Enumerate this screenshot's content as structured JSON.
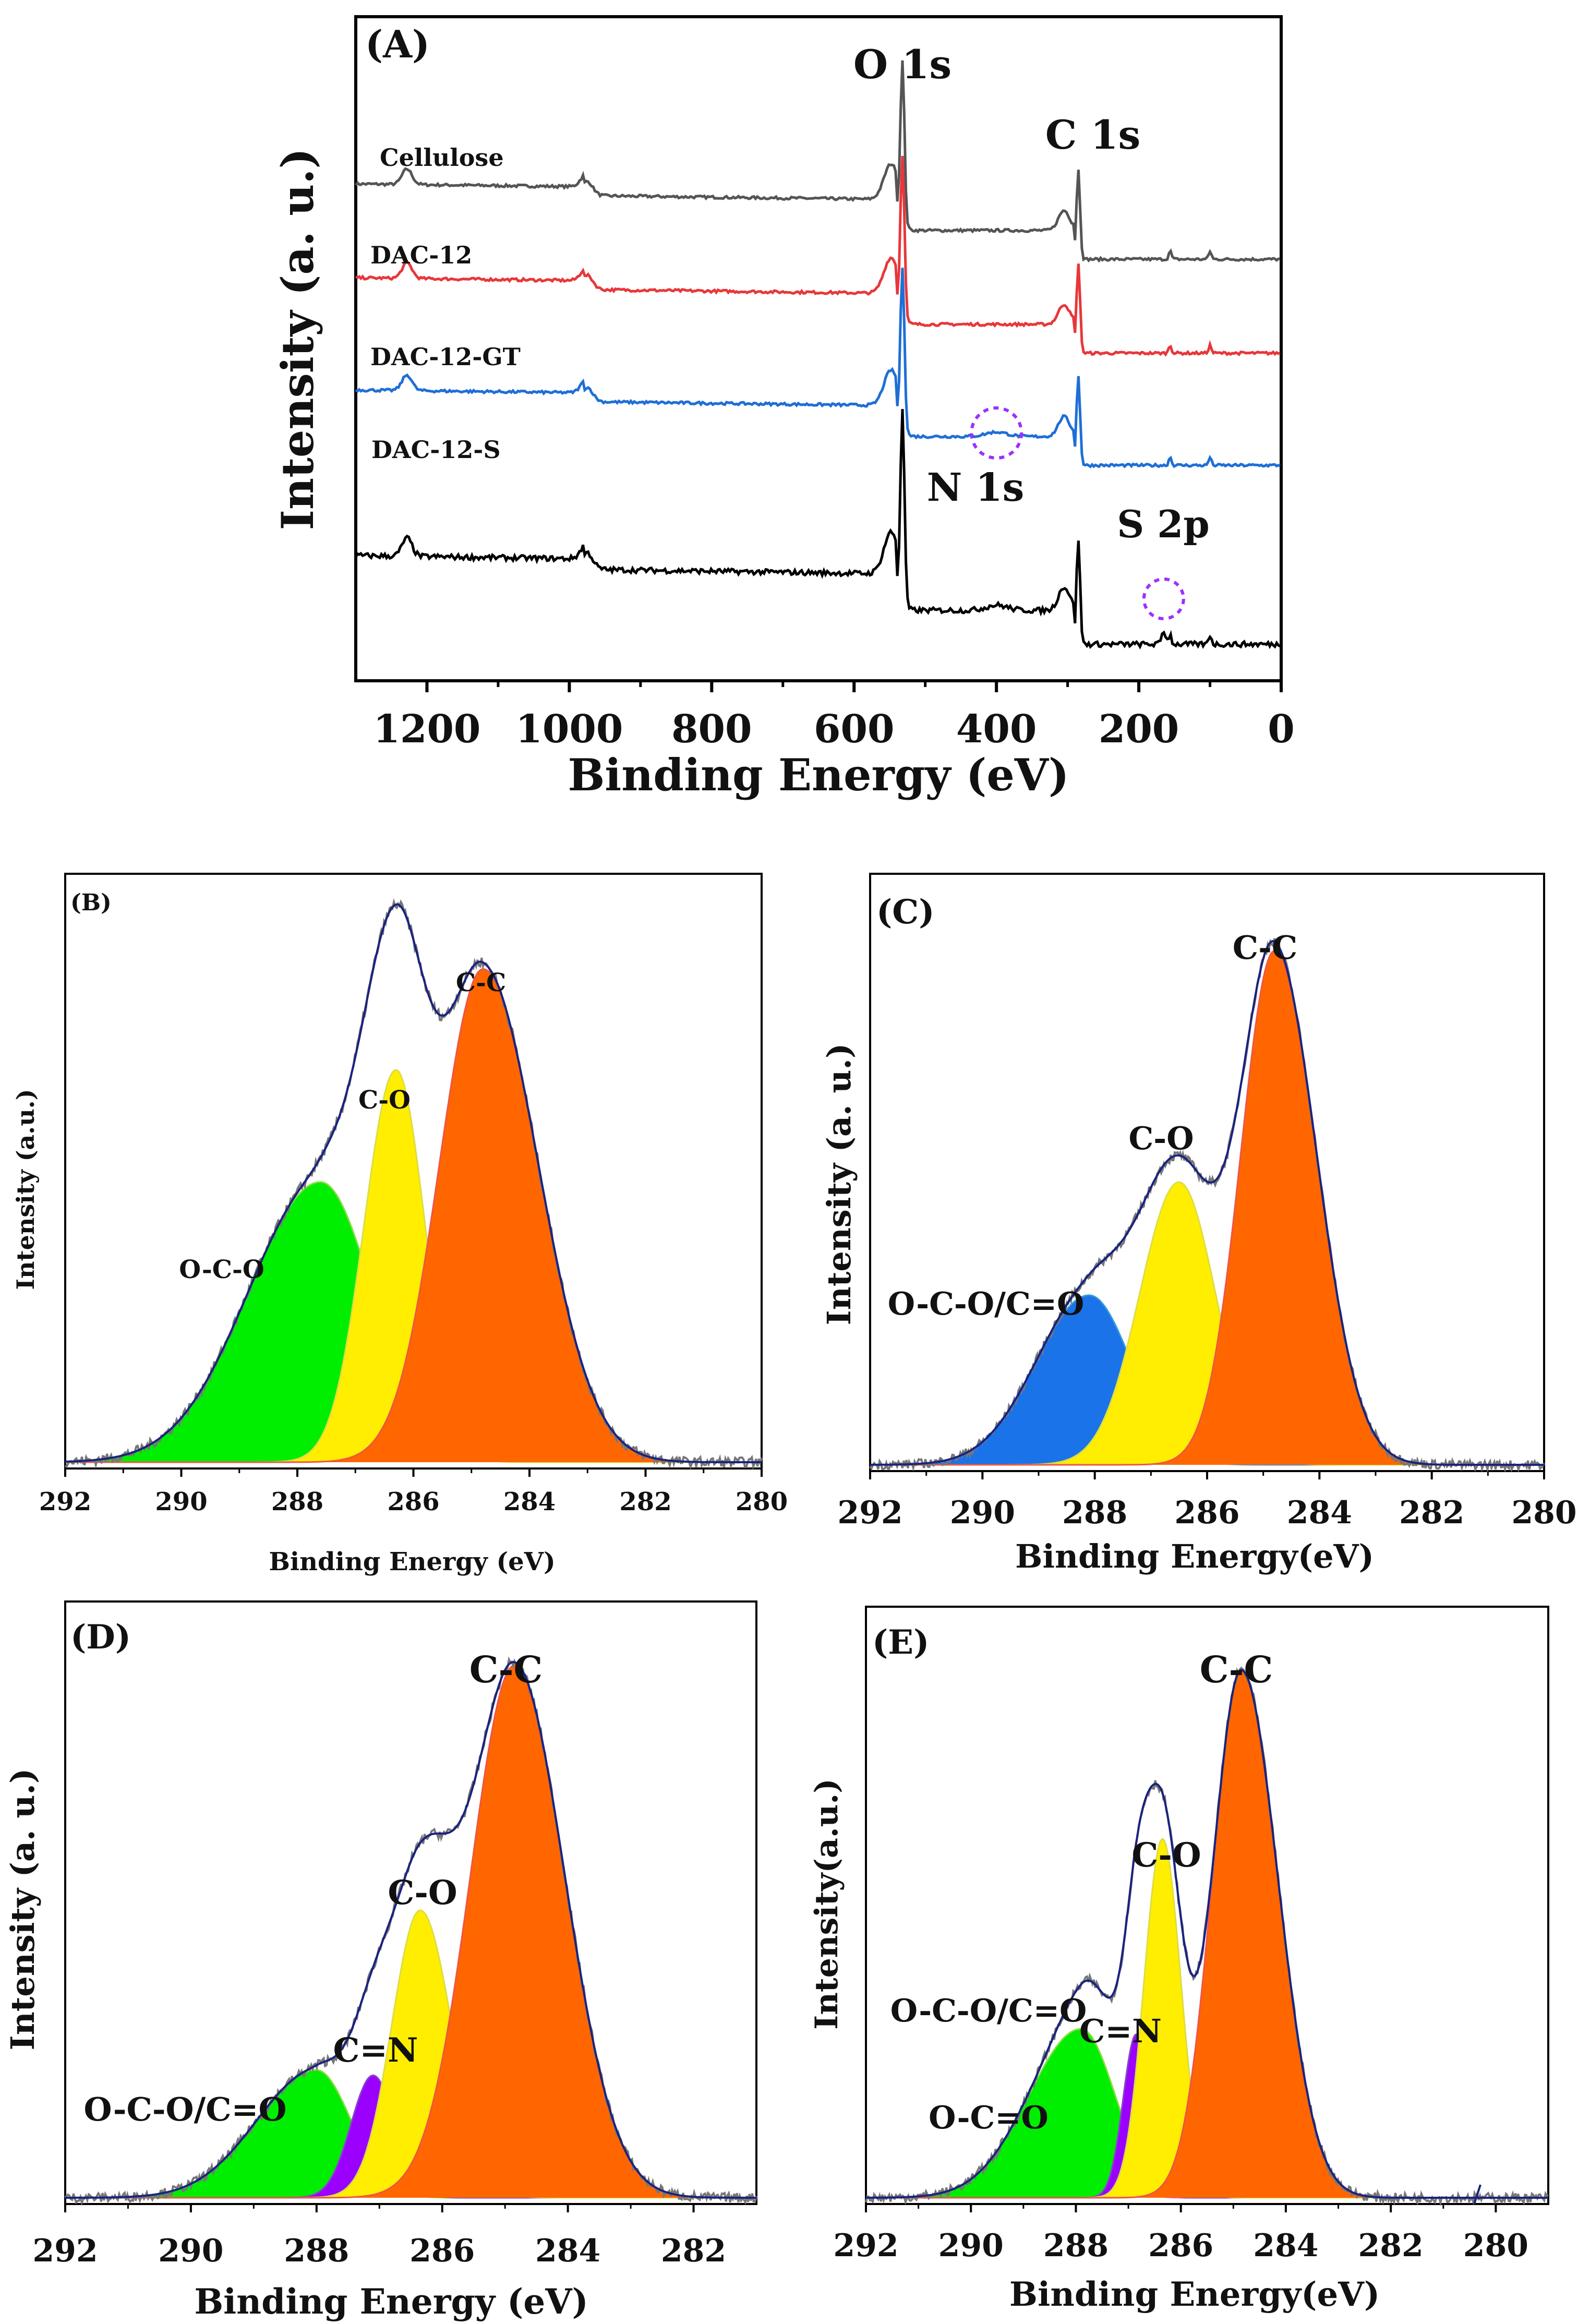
{
  "chart_data": [
    {
      "id": "A",
      "type": "line",
      "panel_label": "(A)",
      "xlabel": "Binding Energy (eV)",
      "ylabel": "Intensity (a. u.)",
      "xlim": [
        1300,
        0
      ],
      "xticks": [
        1200,
        1000,
        800,
        600,
        400,
        200,
        0
      ],
      "yticks": [],
      "series": [
        {
          "name": "Cellulose",
          "color": "#555555",
          "offset": 0,
          "has_N": false,
          "has_S": false
        },
        {
          "name": "DAC-12",
          "color": "#e8373a",
          "offset": 1,
          "has_N": false,
          "has_S": false
        },
        {
          "name": "DAC-12-GT",
          "color": "#1f6fd6",
          "offset": 2,
          "has_N": true,
          "has_S": false
        },
        {
          "name": "DAC-12-S",
          "color": "#000000",
          "offset": 3,
          "has_N": true,
          "has_S": true
        }
      ],
      "peak_labels": [
        {
          "text": "O 1s",
          "energy": 532
        },
        {
          "text": "C 1s",
          "energy": 285
        },
        {
          "text": "N 1s",
          "energy": 400
        },
        {
          "text": "S 2p",
          "energy": 165
        }
      ],
      "circle_color": "#9b30ff"
    },
    {
      "id": "B",
      "type": "area",
      "panel_label": "(B)",
      "xlabel": "Binding Energy (eV)",
      "ylabel": "Intensity (a.u.)",
      "xlim": [
        292,
        280
      ],
      "xticks": [
        292,
        290,
        288,
        286,
        284,
        282,
        280
      ],
      "ymax": 1.05,
      "envelope_color": "#1a237e",
      "peaks": [
        {
          "label": "O-C-O",
          "center": 287.6,
          "height": 0.5,
          "sigL": 1.25,
          "sigR": 0.9,
          "fill": "#00ee00",
          "line": "#88dd44"
        },
        {
          "label": "C-O",
          "center": 286.3,
          "height": 0.7,
          "sigL": 0.55,
          "sigR": 0.5,
          "fill": "#ffee00",
          "line": "#dddd44"
        },
        {
          "label": "C-C",
          "center": 284.8,
          "height": 0.88,
          "sigL": 0.75,
          "sigR": 0.95,
          "fill": "#ff6600",
          "line": "#ee5544"
        }
      ]
    },
    {
      "id": "C",
      "type": "area",
      "panel_label": "(C)",
      "xlabel": "Binding Energy(eV)",
      "ylabel": "Intensity (a. u.)",
      "xlim": [
        292,
        280
      ],
      "xticks": [
        292,
        290,
        288,
        286,
        284,
        282,
        280
      ],
      "ymax": 1.15,
      "envelope_color": "#1a237e",
      "peaks": [
        {
          "label": "O-C-O/C=O",
          "center": 288.1,
          "height": 0.33,
          "sigL": 0.95,
          "sigR": 0.75,
          "fill": "#1a73e8",
          "line": "#3399dd"
        },
        {
          "label": "C-O",
          "center": 286.5,
          "height": 0.55,
          "sigL": 0.7,
          "sigR": 0.65,
          "fill": "#ffee00",
          "line": "#dddd44"
        },
        {
          "label": "C-C",
          "center": 284.8,
          "height": 1.0,
          "sigL": 0.6,
          "sigR": 0.75,
          "fill": "#ff6600",
          "line": "#ee5544"
        }
      ]
    },
    {
      "id": "D",
      "type": "area",
      "panel_label": "(D)",
      "xlabel": "Binding Energy (eV)",
      "ylabel": "Intensity (a. u.)",
      "xlim": [
        292,
        281
      ],
      "xticks": [
        292,
        290,
        288,
        286,
        284,
        282
      ],
      "ymax": 1.12,
      "envelope_color": "#1a237e",
      "peaks": [
        {
          "label": "O-C-O/C=O",
          "center": 288.0,
          "height": 0.24,
          "sigL": 0.95,
          "sigR": 0.55,
          "fill": "#00ee00",
          "line": "#88dd44"
        },
        {
          "label": "C=N",
          "center": 287.1,
          "height": 0.23,
          "sigL": 0.35,
          "sigR": 0.35,
          "fill": "#9b00ff",
          "line": "#8844cc"
        },
        {
          "label": "C-O",
          "center": 286.35,
          "height": 0.54,
          "sigL": 0.45,
          "sigR": 0.5,
          "fill": "#ffee00",
          "line": "#dddd44"
        },
        {
          "label": "C-C",
          "center": 284.85,
          "height": 1.0,
          "sigL": 0.7,
          "sigR": 0.8,
          "fill": "#ff6600",
          "line": "#ee5544"
        }
      ]
    },
    {
      "id": "E",
      "type": "area",
      "panel_label": "(E)",
      "xlabel": "Binding Energy(eV)",
      "ylabel": "Intensity(a.u.)",
      "xlim": [
        292,
        279
      ],
      "xticks": [
        292,
        290,
        288,
        286,
        284,
        282,
        280
      ],
      "ymax": 1.12,
      "envelope_color": "#1a237e",
      "peaks": [
        {
          "label": "O-C=O",
          "center": 287.5,
          "height": 0.11,
          "sigL": 0.55,
          "sigR": 0.4,
          "fill": "#ff77ff",
          "line": "#ee66ee"
        },
        {
          "label": "O-C-O/C=O",
          "center": 287.9,
          "height": 0.32,
          "sigL": 1.0,
          "sigR": 0.65,
          "fill": "#00ee00",
          "line": "#88dd44"
        },
        {
          "label": "C=N",
          "center": 286.85,
          "height": 0.31,
          "sigL": 0.25,
          "sigR": 0.25,
          "fill": "#9b00ff",
          "line": "#8844cc"
        },
        {
          "label": "C-O",
          "center": 286.35,
          "height": 0.68,
          "sigL": 0.35,
          "sigR": 0.35,
          "fill": "#ffee00",
          "line": "#dddd44"
        },
        {
          "label": "C-C",
          "center": 284.85,
          "height": 1.0,
          "sigL": 0.55,
          "sigR": 0.7,
          "fill": "#ff6600",
          "line": "#ee5544"
        }
      ]
    }
  ]
}
